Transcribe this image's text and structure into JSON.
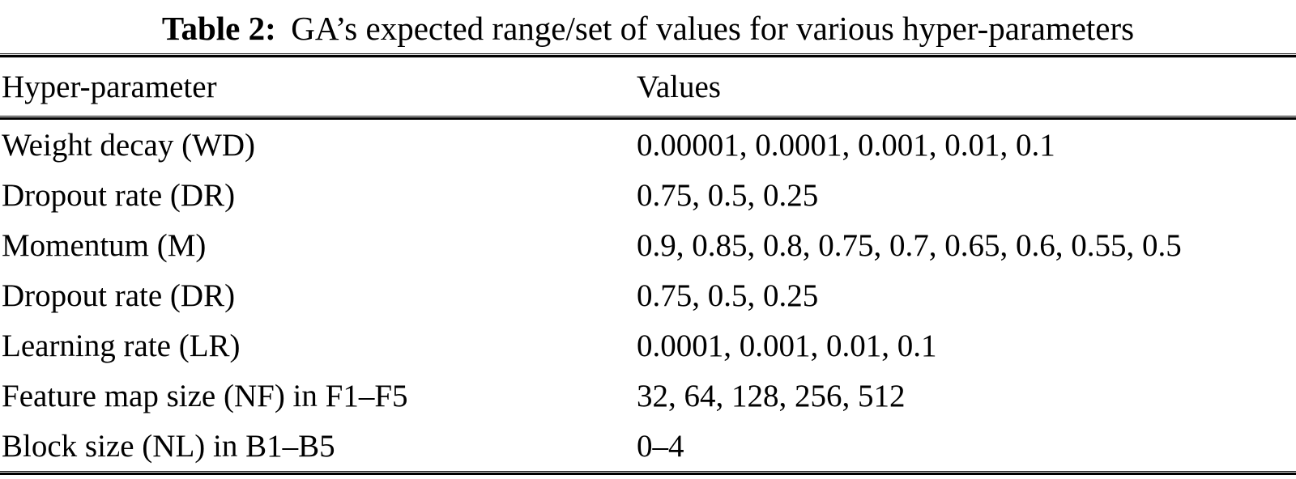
{
  "table": {
    "caption": {
      "label": "Table 2:",
      "text": "GA’s expected range/set of values for various hyper-parameters"
    },
    "columns": [
      "Hyper-parameter",
      "Values"
    ],
    "rows": [
      {
        "param": "Weight decay (WD)",
        "values": "0.00001, 0.0001, 0.001, 0.01, 0.1"
      },
      {
        "param": "Dropout rate (DR)",
        "values": "0.75, 0.5, 0.25"
      },
      {
        "param": "Momentum (M)",
        "values": "0.9, 0.85, 0.8, 0.75, 0.7, 0.65, 0.6, 0.55, 0.5"
      },
      {
        "param": "Dropout rate (DR)",
        "values": "0.75, 0.5, 0.25"
      },
      {
        "param": "Learning rate (LR)",
        "values": "0.0001, 0.001, 0.01, 0.1"
      },
      {
        "param": "Feature map size (NF) in F1–F5",
        "values": "32, 64, 128, 256, 512"
      },
      {
        "param": "Block size (NL) in B1–B5",
        "values": "0–4"
      }
    ]
  }
}
